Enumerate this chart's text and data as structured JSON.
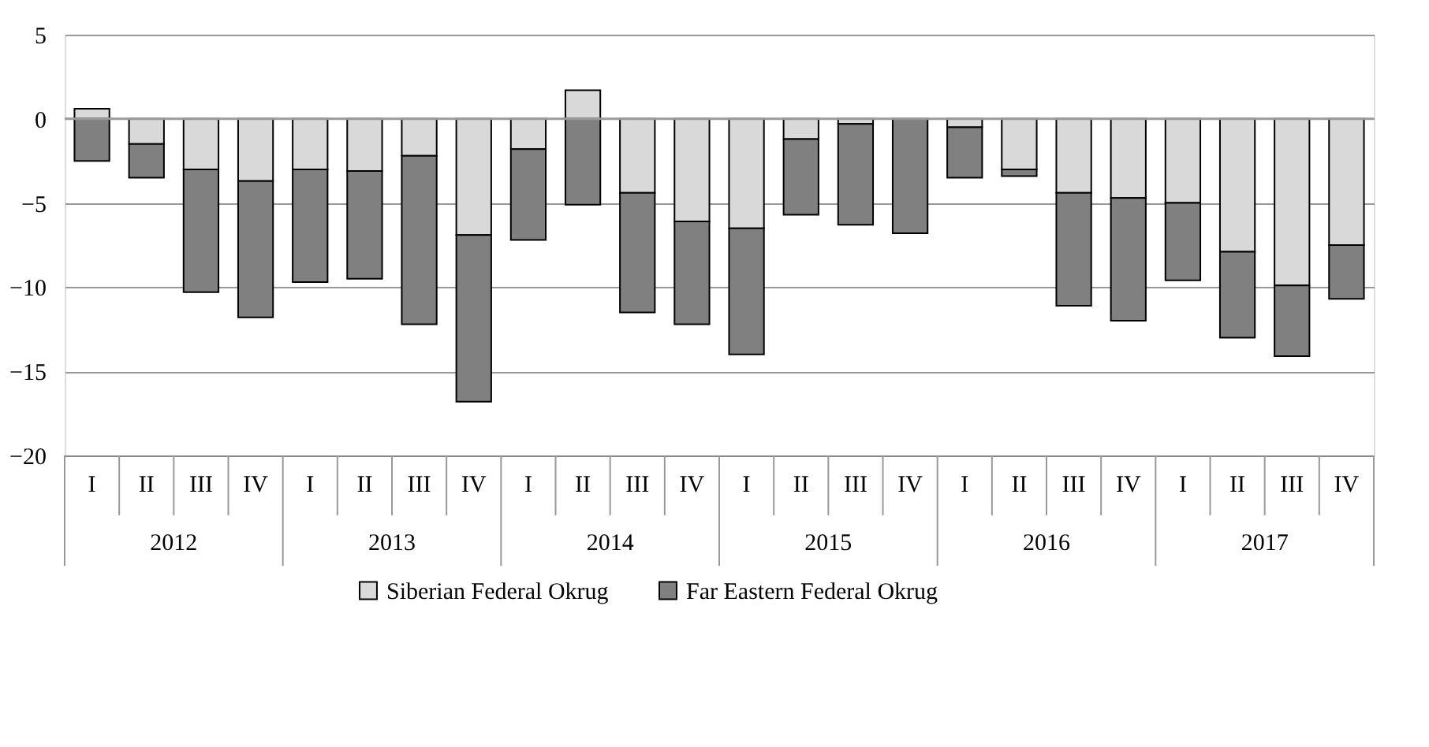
{
  "chart_data": {
    "type": "bar",
    "stacked": true,
    "categories": [
      "I",
      "II",
      "III",
      "IV",
      "I",
      "II",
      "III",
      "IV",
      "I",
      "II",
      "III",
      "IV",
      "I",
      "II",
      "III",
      "IV",
      "I",
      "II",
      "III",
      "IV",
      "I",
      "II",
      "III",
      "IV"
    ],
    "annotations": [
      "2012",
      "2013",
      "2014",
      "2015",
      "2016",
      "2017"
    ],
    "series": [
      {
        "name": "Siberian Federal Okrug",
        "color": "#d9d9d9",
        "values": [
          0.6,
          -1.5,
          -3.0,
          -3.7,
          -3.0,
          -3.1,
          -2.2,
          -6.9,
          -1.8,
          1.7,
          -4.4,
          -6.1,
          -6.5,
          -1.2,
          -0.3,
          null,
          -0.5,
          -3.0,
          -4.4,
          -4.7,
          -5.0,
          -7.9,
          -9.9,
          -7.5
        ]
      },
      {
        "name": "Far Eastern Federal Okrug",
        "color": "#808080",
        "values": [
          -2.5,
          -2.0,
          -7.3,
          -8.1,
          -6.7,
          -6.4,
          -10.0,
          -9.9,
          -5.4,
          -5.1,
          -7.1,
          -6.1,
          -7.5,
          -4.5,
          -6.0,
          -6.8,
          -3.0,
          -0.4,
          -6.7,
          -7.3,
          -4.6,
          -5.1,
          -4.2,
          -3.2
        ]
      }
    ],
    "ylim": [
      -20,
      5
    ],
    "yticks": [
      -20,
      -15,
      -10,
      -5,
      0,
      5
    ],
    "grid": "y",
    "legend": "bottom"
  }
}
